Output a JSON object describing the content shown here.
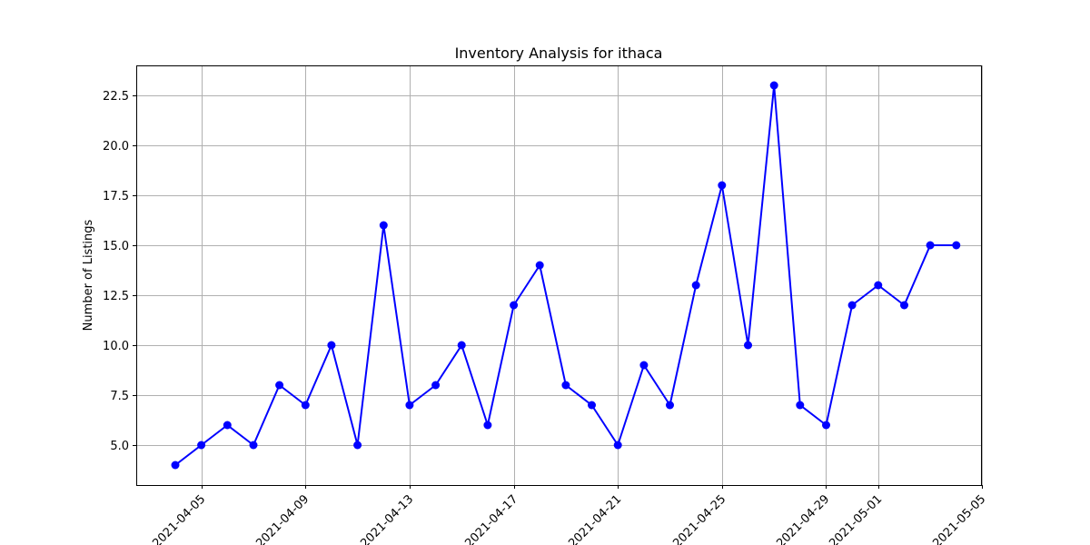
{
  "chart_data": {
    "type": "line",
    "title": "Inventory Analysis for ithaca",
    "xlabel": "",
    "ylabel": "Number of Listings",
    "grid": true,
    "color": "#0000ff",
    "marker": "circle",
    "x": [
      "2021-04-04",
      "2021-04-05",
      "2021-04-06",
      "2021-04-07",
      "2021-04-08",
      "2021-04-09",
      "2021-04-10",
      "2021-04-11",
      "2021-04-12",
      "2021-04-13",
      "2021-04-14",
      "2021-04-15",
      "2021-04-16",
      "2021-04-17",
      "2021-04-18",
      "2021-04-19",
      "2021-04-20",
      "2021-04-21",
      "2021-04-22",
      "2021-04-23",
      "2021-04-24",
      "2021-04-25",
      "2021-04-26",
      "2021-04-27",
      "2021-04-28",
      "2021-04-29",
      "2021-04-30",
      "2021-05-01",
      "2021-05-02",
      "2021-05-03",
      "2021-05-04"
    ],
    "values": [
      4,
      5,
      6,
      5,
      8,
      7,
      10,
      5,
      16,
      7,
      8,
      10,
      6,
      12,
      14,
      8,
      7,
      5,
      9,
      7,
      13,
      18,
      10,
      23,
      7,
      6,
      12,
      13,
      12,
      15,
      15
    ],
    "xlim": [
      "2021-04-02",
      "2021-05-05"
    ],
    "ylim": [
      3,
      24
    ],
    "x_ticks": [
      "2021-04-05",
      "2021-04-09",
      "2021-04-13",
      "2021-04-17",
      "2021-04-21",
      "2021-04-25",
      "2021-04-29",
      "2021-05-01",
      "2021-05-05"
    ],
    "y_ticks": [
      "5.0",
      "7.5",
      "10.0",
      "12.5",
      "15.0",
      "17.5",
      "20.0",
      "22.5"
    ]
  }
}
